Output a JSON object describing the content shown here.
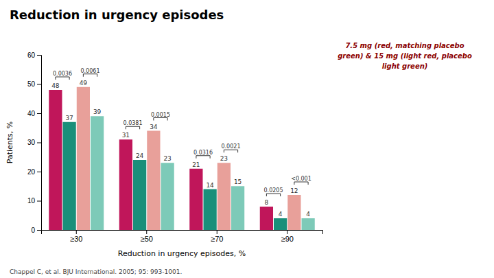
{
  "chart_data": {
    "type": "bar",
    "title": "Reduction in urgency episodes",
    "xlabel": "Reduction in urgency episodes, %",
    "ylabel": "Patients, %",
    "categories": [
      "≥30",
      "≥50",
      "≥70",
      "≥90"
    ],
    "series": [
      {
        "color": "#C0165A",
        "values": [
          48,
          31,
          21,
          8
        ]
      },
      {
        "color": "#1A8F7A",
        "values": [
          37,
          24,
          14,
          4
        ]
      },
      {
        "color": "#E8A09A",
        "values": [
          49,
          34,
          23,
          12
        ]
      },
      {
        "color": "#7DCAB8",
        "values": [
          39,
          23,
          15,
          4
        ]
      }
    ],
    "p_values": [
      [
        "0.0036",
        "0.0381",
        "0.0316",
        "0.0205"
      ],
      [
        "0.0061",
        "0.0015",
        "0.0021",
        "<0.001"
      ]
    ],
    "ylim": [
      0,
      60
    ],
    "yticks": [
      0,
      10,
      20,
      30,
      40,
      50,
      60
    ],
    "grid": false,
    "data_labels": true,
    "annotations": [
      "7.5 mg (red, matching placebo\ngreen) & 15 mg (light red, placebo\nlight green)",
      "Chappel C, et al. BJU International. 2005; 95: 993-1001."
    ]
  }
}
